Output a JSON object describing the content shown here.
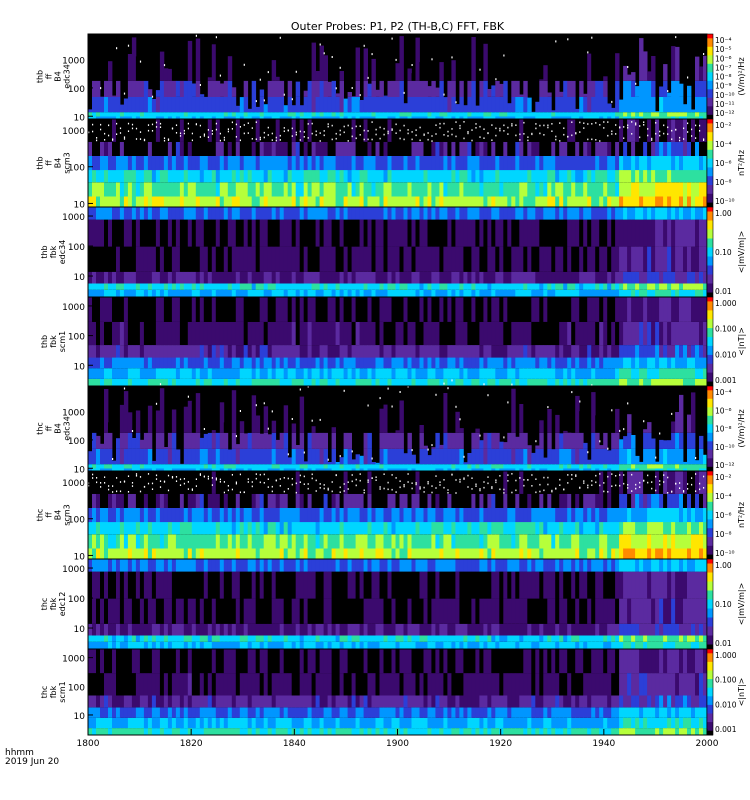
{
  "title": "Outer Probes: P1, P2 (TH-B,C) FFT, FBK",
  "footer": {
    "line1": "hhmm",
    "line2": "2019 Jun 20"
  },
  "x_ticks": [
    "1800",
    "1820",
    "1840",
    "1900",
    "1920",
    "1940",
    "2000"
  ],
  "colors": {
    "colormap": [
      "#000000",
      "#3b0a6e",
      "#5b2aa0",
      "#2b3fd8",
      "#0096ff",
      "#00d6ff",
      "#2de0a0",
      "#b6ff3b",
      "#ffe600",
      "#ff8a00",
      "#ff0000"
    ]
  },
  "chart_data": [
    {
      "type": "heatmap",
      "panel": "thb_ff_b4_edc34",
      "ylabel": [
        "thb",
        "ff",
        "B4",
        "edc34"
      ],
      "yscale": "log",
      "ylim": [
        8,
        8000
      ],
      "y_ticks": [
        "10",
        "100",
        "1000"
      ],
      "colorbar": {
        "label": "(V/m)²/Hz",
        "scale": "log",
        "ticks": [
          "10⁻⁴",
          "10⁻⁵",
          "10⁻⁶",
          "10⁻⁷",
          "10⁻⁸",
          "10⁻⁹",
          "10⁻¹⁰",
          "10⁻¹¹",
          "10⁻¹²"
        ]
      },
      "style": "burst"
    },
    {
      "type": "heatmap",
      "panel": "thb_ff_b4_scm3",
      "ylabel": [
        "thb",
        "ff",
        "B4",
        "scm3"
      ],
      "yscale": "log",
      "ylim": [
        8,
        2000
      ],
      "y_ticks": [
        "10",
        "100",
        "1000"
      ],
      "colorbar": {
        "label": "nT²/Hz",
        "scale": "log",
        "ticks": [
          "10⁻²",
          "10⁻⁴",
          "10⁻⁶",
          "10⁻⁸",
          "10⁻¹⁰"
        ]
      },
      "style": "scm"
    },
    {
      "type": "heatmap",
      "panel": "thb_fbk_edc34",
      "ylabel": [
        "thb",
        "fbk",
        "edc34"
      ],
      "yscale": "log",
      "ylim": [
        2,
        2000
      ],
      "y_ticks": [
        "10",
        "100",
        "1000"
      ],
      "colorbar": {
        "label": "<|mV/m|>",
        "scale": "log",
        "ticks": [
          "1.00",
          "0.10",
          "0.01"
        ]
      },
      "style": "fbk_e"
    },
    {
      "type": "heatmap",
      "panel": "thb_fbk_scm1",
      "ylabel": [
        "thb",
        "fbk",
        "scm1"
      ],
      "yscale": "log",
      "ylim": [
        2,
        2000
      ],
      "y_ticks": [
        "10",
        "100",
        "1000"
      ],
      "colorbar": {
        "label": "<|nT|>",
        "scale": "log",
        "ticks": [
          "1.000",
          "0.100",
          "0.010",
          "0.001"
        ]
      },
      "style": "fbk_b"
    },
    {
      "type": "heatmap",
      "panel": "thc_ff_b4_edc34",
      "ylabel": [
        "thc",
        "ff",
        "B4",
        "edc34"
      ],
      "yscale": "log",
      "ylim": [
        8,
        8000
      ],
      "y_ticks": [
        "10",
        "100",
        "1000"
      ],
      "colorbar": {
        "label": "(V/m)²/Hz",
        "scale": "log",
        "ticks": [
          "10⁻⁴",
          "10⁻⁶",
          "10⁻⁸",
          "10⁻¹⁰",
          "10⁻¹²"
        ]
      },
      "style": "burst"
    },
    {
      "type": "heatmap",
      "panel": "thc_ff_b4_scm3",
      "ylabel": [
        "thc",
        "ff",
        "B4",
        "scm3"
      ],
      "yscale": "log",
      "ylim": [
        8,
        2000
      ],
      "y_ticks": [
        "10",
        "100",
        "1000"
      ],
      "colorbar": {
        "label": "nT²/Hz",
        "scale": "log",
        "ticks": [
          "10⁻²",
          "10⁻⁴",
          "10⁻⁶",
          "10⁻⁸",
          "10⁻¹⁰"
        ]
      },
      "style": "scm"
    },
    {
      "type": "heatmap",
      "panel": "thc_fbk_edc12",
      "ylabel": [
        "thc",
        "fbk",
        "edc12"
      ],
      "yscale": "log",
      "ylim": [
        2,
        2000
      ],
      "y_ticks": [
        "10",
        "100",
        "1000"
      ],
      "colorbar": {
        "label": "<|mV/m|>",
        "scale": "log",
        "ticks": [
          "1.00",
          "0.10",
          "0.01"
        ]
      },
      "style": "fbk_e"
    },
    {
      "type": "heatmap",
      "panel": "thc_fbk_scm1",
      "ylabel": [
        "thc",
        "fbk",
        "scm1"
      ],
      "yscale": "log",
      "ylim": [
        2,
        2000
      ],
      "y_ticks": [
        "10",
        "100",
        "1000"
      ],
      "colorbar": {
        "label": "<|nT|>",
        "scale": "log",
        "ticks": [
          "1.000",
          "0.100",
          "0.010",
          "0.001"
        ]
      },
      "style": "fbk_b"
    }
  ]
}
